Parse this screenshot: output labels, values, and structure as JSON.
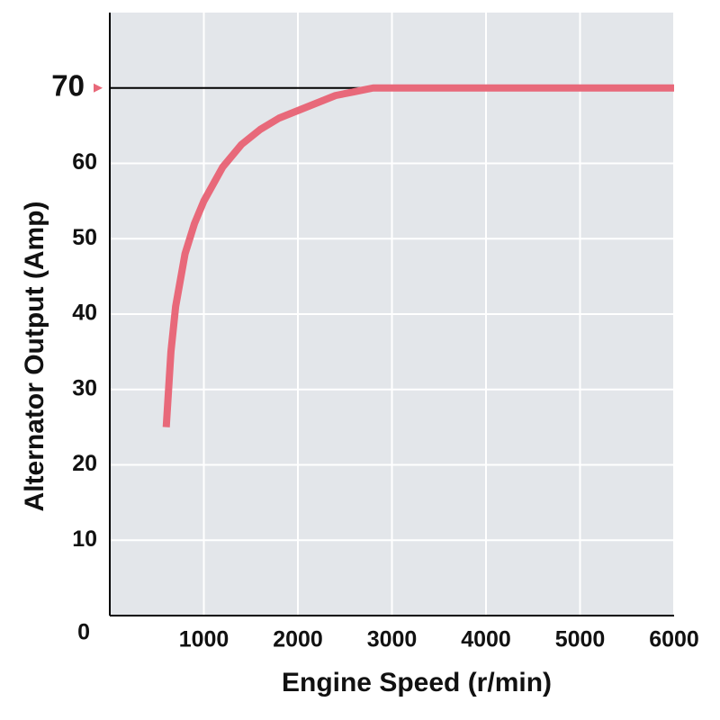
{
  "chart_data": {
    "type": "line",
    "x_label": "Engine Speed (r/min)",
    "y_label": "Alternator Output (Amp)",
    "series": [
      {
        "name": "Alternator output",
        "color": "#e8697a",
        "x": [
          600,
          650,
          700,
          800,
          900,
          1000,
          1200,
          1400,
          1600,
          1800,
          2000,
          2200,
          2400,
          2600,
          2800,
          3000,
          6000
        ],
        "values": [
          25,
          35,
          41,
          48,
          52,
          55,
          59.5,
          62.5,
          64.5,
          66,
          67,
          68,
          69,
          69.5,
          70,
          70,
          70
        ]
      }
    ],
    "xlim": [
      0,
      6000
    ],
    "xticks": [
      1000,
      2000,
      3000,
      4000,
      5000,
      6000
    ],
    "ylim": [
      0,
      80
    ],
    "yticks": [
      0,
      10,
      20,
      30,
      40,
      50,
      60
    ],
    "reference": {
      "value": 70,
      "color": "#e8697a"
    },
    "grid": true,
    "background": "#e3e6ea"
  }
}
